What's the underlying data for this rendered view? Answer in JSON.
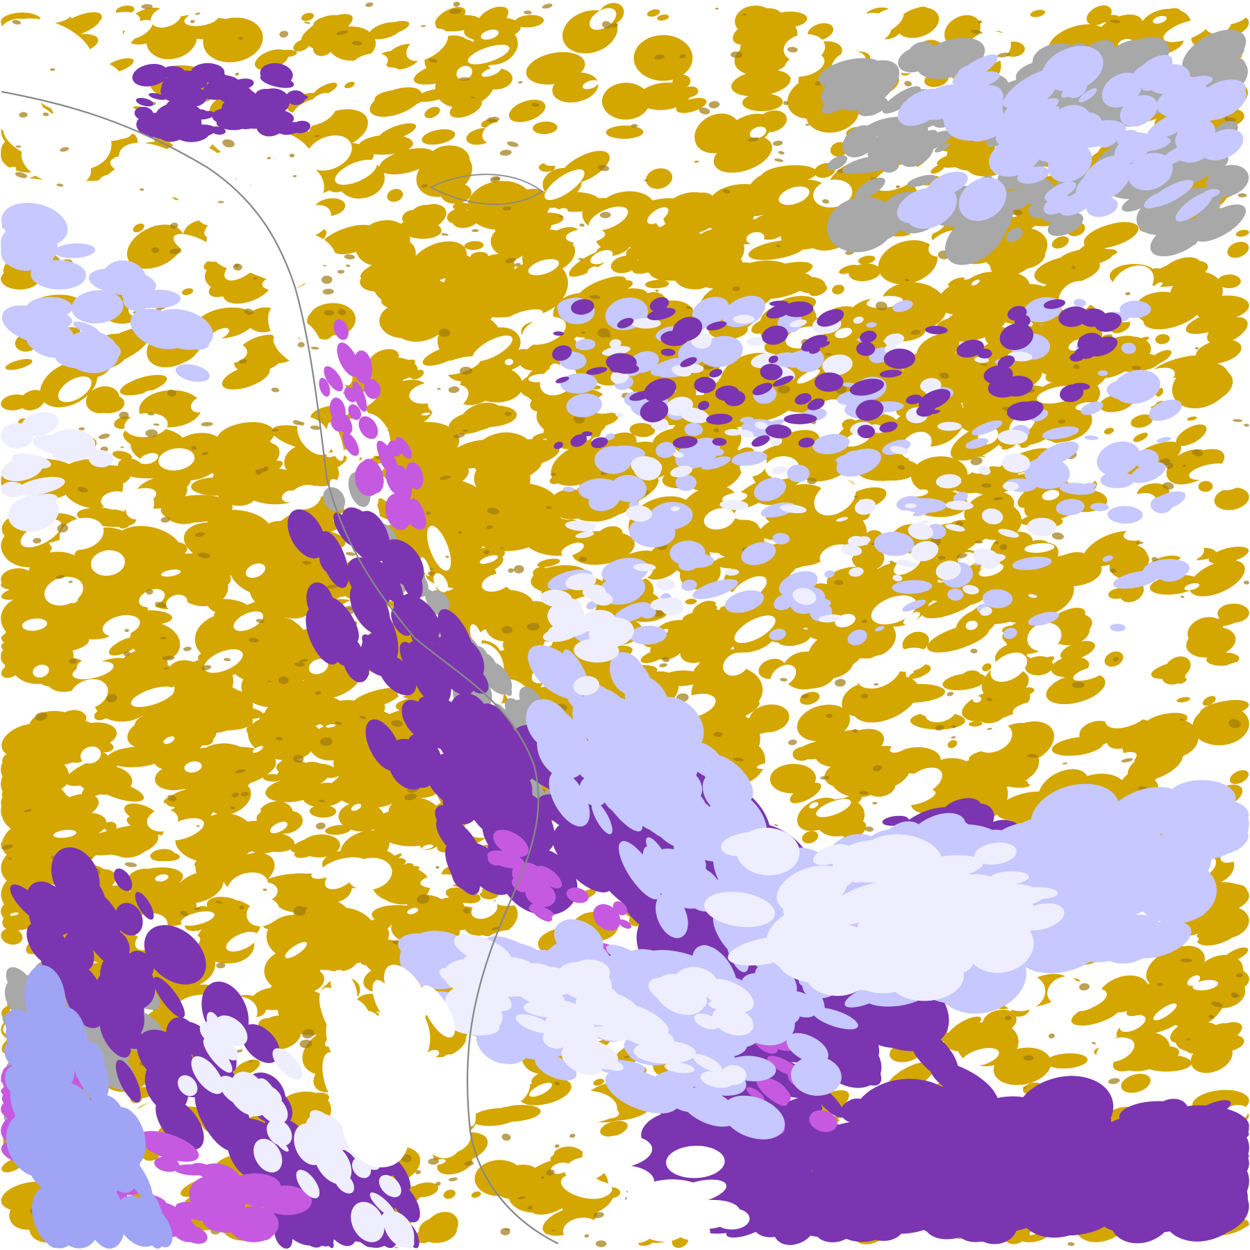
{
  "map": {
    "kind": "satellite cloud-type classification imagery",
    "colors": {
      "clear": "#ffffff",
      "low_cloud": "#d4a600",
      "low_cloud_dark": "#a07a10",
      "thick_cloud": "#7b35b0",
      "cloud_magenta": "#c55ae0",
      "high_cloud_lavender": "#c6c8ff",
      "high_cloud_pale": "#eeeeff",
      "high_cloud_blue": "#9fa4f5",
      "thin_cloud_gray": "#a8a8a8",
      "coastline": "#888888"
    }
  }
}
